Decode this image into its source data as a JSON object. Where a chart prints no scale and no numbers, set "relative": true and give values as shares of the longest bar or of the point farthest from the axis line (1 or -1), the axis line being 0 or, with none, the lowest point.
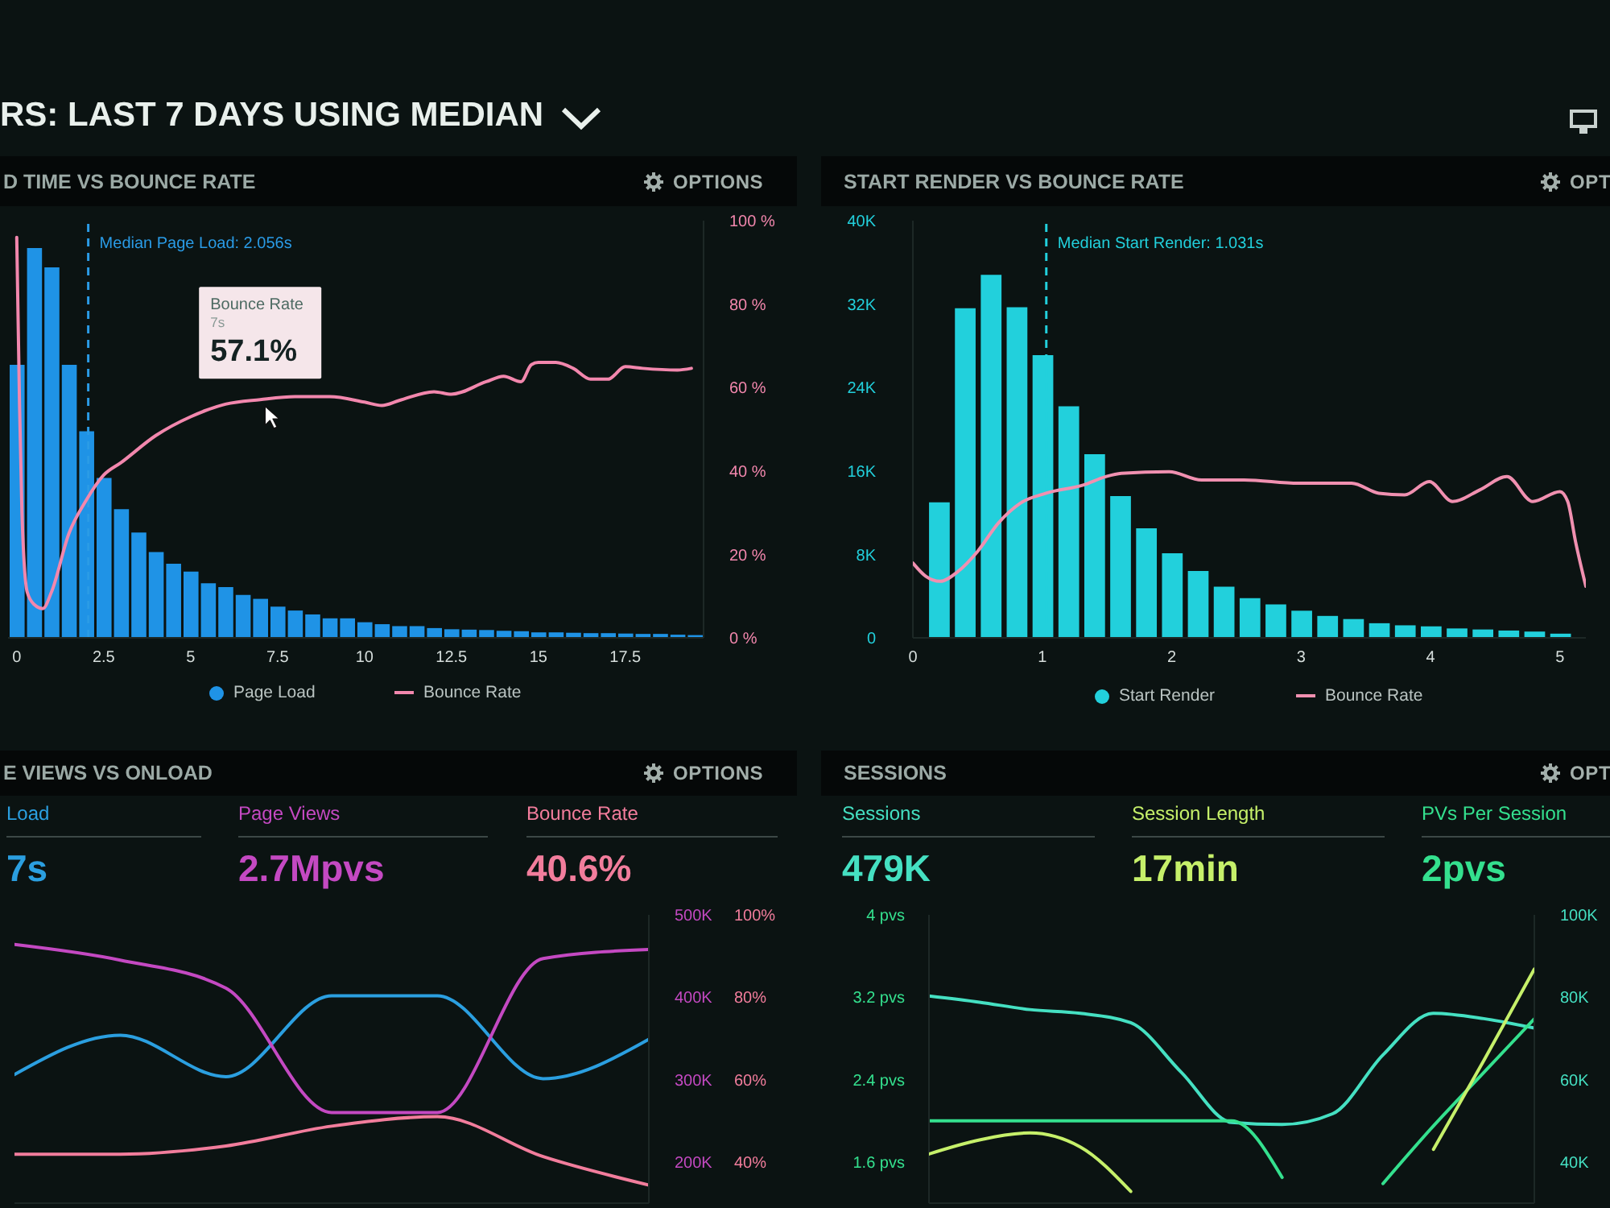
{
  "chart_data": [
    {
      "type": "other",
      "title": "RS: LAST 7 DAYS USING MEDIAN"
    },
    {
      "type": "bar",
      "title": "D TIME VS BOUNCE RATE",
      "relative": true,
      "x": [
        0,
        0.5,
        1,
        1.5,
        2,
        2.5,
        3,
        3.5,
        4,
        4.5,
        5,
        5.5,
        6,
        6.5,
        7,
        7.5,
        8,
        8.5,
        9,
        9.5,
        10,
        10.5,
        11,
        11.5,
        12,
        12.5,
        13,
        13.5,
        14,
        14.5,
        15,
        15.5,
        16,
        16.5,
        17,
        17.5,
        18,
        18.5,
        19,
        19.5
      ],
      "series": [
        {
          "name": "Page Load",
          "color": "#1f93e6",
          "values": [
            0.7,
            1,
            0.95,
            0.7,
            0.53,
            0.41,
            0.33,
            0.27,
            0.22,
            0.19,
            0.17,
            0.14,
            0.13,
            0.11,
            0.1,
            0.08,
            0.07,
            0.06,
            0.05,
            0.05,
            0.04,
            0.035,
            0.03,
            0.03,
            0.025,
            0.022,
            0.021,
            0.02,
            0.018,
            0.017,
            0.014,
            0.014,
            0.013,
            0.012,
            0.012,
            0.011,
            0.01,
            0.01,
            0.008,
            0.007
          ]
        }
      ],
      "xlim": [
        -0.25,
        19.75
      ],
      "xticks": [
        0,
        2.5,
        5,
        7.5,
        10,
        12.5,
        15,
        17.5
      ],
      "ref_lines": [
        {
          "axis": "x",
          "value": 2.056,
          "label": "Median Page Load: 2.056s",
          "color": "#2a9be6",
          "line_style": "dashed"
        }
      ],
      "annotations": [
        "OPTIONS"
      ],
      "legend": "bottom"
    },
    {
      "type": "line",
      "x": [
        0,
        0.08,
        0.15,
        0.3,
        0.5,
        0.75,
        1,
        1.5,
        2,
        2.5,
        3,
        4,
        5,
        6,
        7,
        8,
        9,
        10,
        10.5,
        11,
        12,
        12.5,
        13.5,
        14,
        14.5,
        14.8,
        15,
        15.5,
        16,
        16.5,
        17,
        17.5,
        18,
        19,
        19.4
      ],
      "series": [
        {
          "name": "Bounce Rate",
          "color": "#f287ad",
          "values": [
            96,
            56,
            30,
            11,
            8,
            7,
            11,
            25,
            33,
            39,
            42,
            48.5,
            53,
            56,
            57.1,
            57.8,
            57.8,
            56.5,
            55.7,
            56.9,
            59,
            58.4,
            61.4,
            62.7,
            61.4,
            65.5,
            66,
            66,
            64.6,
            62,
            62,
            65,
            64.6,
            64.2,
            64.6
          ]
        }
      ],
      "xlim": [
        -0.25,
        19.75
      ],
      "ylim": [
        0,
        100
      ],
      "yticks": [
        {
          "value": 0,
          "label": "0 %"
        },
        {
          "value": 20,
          "label": "20 %"
        },
        {
          "value": 40,
          "label": "40 %"
        },
        {
          "value": 60,
          "label": "60 %"
        },
        {
          "value": 80,
          "label": "80 %"
        },
        {
          "value": 100,
          "label": "100 %"
        }
      ],
      "annotations": [
        {
          "text": "Bounce Rate\n7s\n57.1%",
          "x": 7,
          "y": 57.1
        }
      ],
      "legend": "bottom",
      "tick_labels": "y"
    },
    {
      "type": "bar",
      "title": "START RENDER VS BOUNCE RATE",
      "x": [
        0.2,
        0.4,
        0.6,
        0.8,
        1,
        1.2,
        1.4,
        1.6,
        1.8,
        2,
        2.2,
        2.4,
        2.6,
        2.8,
        3,
        3.2,
        3.4,
        3.6,
        3.8,
        4,
        4.2,
        4.4,
        4.6,
        4.8,
        5
      ],
      "series": [
        {
          "name": "Start Render",
          "color": "#22d0dc",
          "values": [
            13000,
            31600,
            34800,
            31700,
            27100,
            22200,
            17600,
            13600,
            10500,
            8100,
            6400,
            4900,
            3800,
            3200,
            2600,
            2100,
            1800,
            1400,
            1200,
            1100,
            900,
            800,
            700,
            600,
            400
          ]
        }
      ],
      "xlim": [
        0,
        5.2
      ],
      "xticks": [
        0,
        1,
        2,
        3,
        4,
        5
      ],
      "ylim": [
        0,
        40000
      ],
      "yticks": [
        0,
        {
          "value": 8000,
          "label": "8K"
        },
        {
          "value": 16000,
          "label": "16K"
        },
        {
          "value": 24000,
          "label": "24K"
        },
        {
          "value": 32000,
          "label": "32K"
        },
        {
          "value": 40000,
          "label": "40K"
        }
      ],
      "ref_lines": [
        {
          "axis": "x",
          "value": 1.031,
          "label": "Median Start Render: 1.031s",
          "color": "#22d0dc",
          "line_style": "dashed"
        }
      ],
      "annotations": [
        "OPT"
      ],
      "legend": "bottom"
    },
    {
      "type": "line",
      "relative": true,
      "x": [
        0,
        0.1,
        0.21,
        0.35,
        0.5,
        0.66,
        0.83,
        1.03,
        1.32,
        1.49,
        1.61,
        1.98,
        2.23,
        2.56,
        2.98,
        3.39,
        3.6,
        3.8,
        3.99,
        4.17,
        4.38,
        4.59,
        4.79,
        5,
        5.06,
        5.12,
        5.2
      ],
      "series": [
        {
          "name": "Bounce Rate",
          "color": "#f090b0",
          "values": [
            0.45,
            0.37,
            0.34,
            0.4,
            0.52,
            0.69,
            0.81,
            0.87,
            0.92,
            0.97,
            0.99,
            1,
            0.95,
            0.95,
            0.93,
            0.93,
            0.87,
            0.86,
            0.94,
            0.82,
            0.89,
            0.97,
            0.82,
            0.88,
            0.82,
            0.58,
            0.31
          ]
        }
      ],
      "xlim": [
        0,
        5.2
      ],
      "legend": "bottom",
      "tick_labels": false
    },
    {
      "type": "line",
      "title": "E VIEWS VS ONLOAD",
      "relative": true,
      "categories": [
        null,
        null,
        null,
        null,
        null,
        null,
        null
      ],
      "series": [
        {
          "name": "Load",
          "color": "#2b9fe0",
          "values": [
            0.62,
            0.81,
            0.61,
            1,
            1,
            0.6,
            0.79
          ]
        }
      ],
      "annotations": [
        "7s",
        "OPTIONS"
      ],
      "legend": "top",
      "tick_labels": false
    },
    {
      "type": "line",
      "categories": [
        null,
        null,
        null,
        null,
        null,
        null,
        null
      ],
      "series": [
        {
          "name": "Page Views",
          "color": "#c449c2",
          "values": [
            464000,
            445000,
            411000,
            260000,
            260000,
            447000,
            458000
          ]
        }
      ],
      "ylim": [
        150000,
        500000
      ],
      "yticks": [
        {
          "value": 200000,
          "label": "200K"
        },
        {
          "value": 300000,
          "label": "300K"
        },
        {
          "value": 400000,
          "label": "400K"
        },
        {
          "value": 500000,
          "label": "500K"
        }
      ],
      "annotations": [
        "2.7Mpvs"
      ],
      "legend": "top",
      "tick_labels": "y"
    },
    {
      "type": "line",
      "categories": [
        null,
        null,
        null,
        null,
        null,
        null,
        null
      ],
      "series": [
        {
          "name": "Bounce Rate",
          "color": "#f27d9c",
          "values": [
            41.9,
            41.9,
            43.9,
            48.7,
            51,
            41.3,
            34.4
          ]
        }
      ],
      "ylim": [
        30,
        100
      ],
      "yticks": [
        {
          "value": 40,
          "label": "40%"
        },
        {
          "value": 60,
          "label": "60%"
        },
        {
          "value": 80,
          "label": "80%"
        },
        {
          "value": 100,
          "label": "100%"
        }
      ],
      "annotations": [
        "40.6%"
      ],
      "legend": "top",
      "tick_labels": "y"
    },
    {
      "type": "line",
      "title": "SESSIONS",
      "categories": [
        null,
        null,
        null,
        null,
        null,
        null,
        null,
        null,
        null,
        null,
        null,
        null,
        null
      ],
      "series": [
        {
          "name": "Sessions",
          "color": "#45e0c2",
          "axis": "y2",
          "values": [
            80300,
            78800,
            77000,
            76100,
            73800,
            61800,
            49600,
            49100,
            51700,
            66000,
            76100,
            74800,
            72500
          ]
        },
        {
          "name": "PVs Per Session",
          "color": "#34e08e",
          "values": [
            2,
            2,
            2,
            2,
            2,
            2,
            2,
            1.45,
            null,
            1.39,
            1.95,
            2.47,
            2.99
          ]
        }
      ],
      "ylim": [
        1.2,
        4
      ],
      "yticks": [
        {
          "value": 1.6,
          "label": "1.6 pvs"
        },
        {
          "value": 2.4,
          "label": "2.4 pvs"
        },
        {
          "value": 3.2,
          "label": "3.2 pvs"
        },
        {
          "value": 4,
          "label": "4 pvs"
        }
      ],
      "y2lim": [
        30000,
        100000
      ],
      "y2ticks": [
        {
          "value": 40000,
          "label": "40K"
        },
        {
          "value": 60000,
          "label": "60K"
        },
        {
          "value": 80000,
          "label": "80K"
        },
        {
          "value": 100000,
          "label": "100K"
        }
      ],
      "annotations": [
        "479K",
        "2pvs",
        "OPT"
      ],
      "legend": "top",
      "tick_labels": "y"
    },
    {
      "type": "line",
      "relative": true,
      "categories": [
        null,
        null,
        null,
        null,
        null,
        null,
        null,
        null,
        null,
        null,
        null,
        null,
        null
      ],
      "series": [
        {
          "name": "Session Length",
          "color": "#c6f06a",
          "values": [
            0.21,
            0.27,
            0.3,
            0.24,
            0.05,
            null,
            null,
            null,
            null,
            null,
            0.23,
            0.61,
            1
          ]
        }
      ],
      "annotations": [
        "17min"
      ],
      "legend": "top",
      "tick_labels": false
    }
  ]
}
